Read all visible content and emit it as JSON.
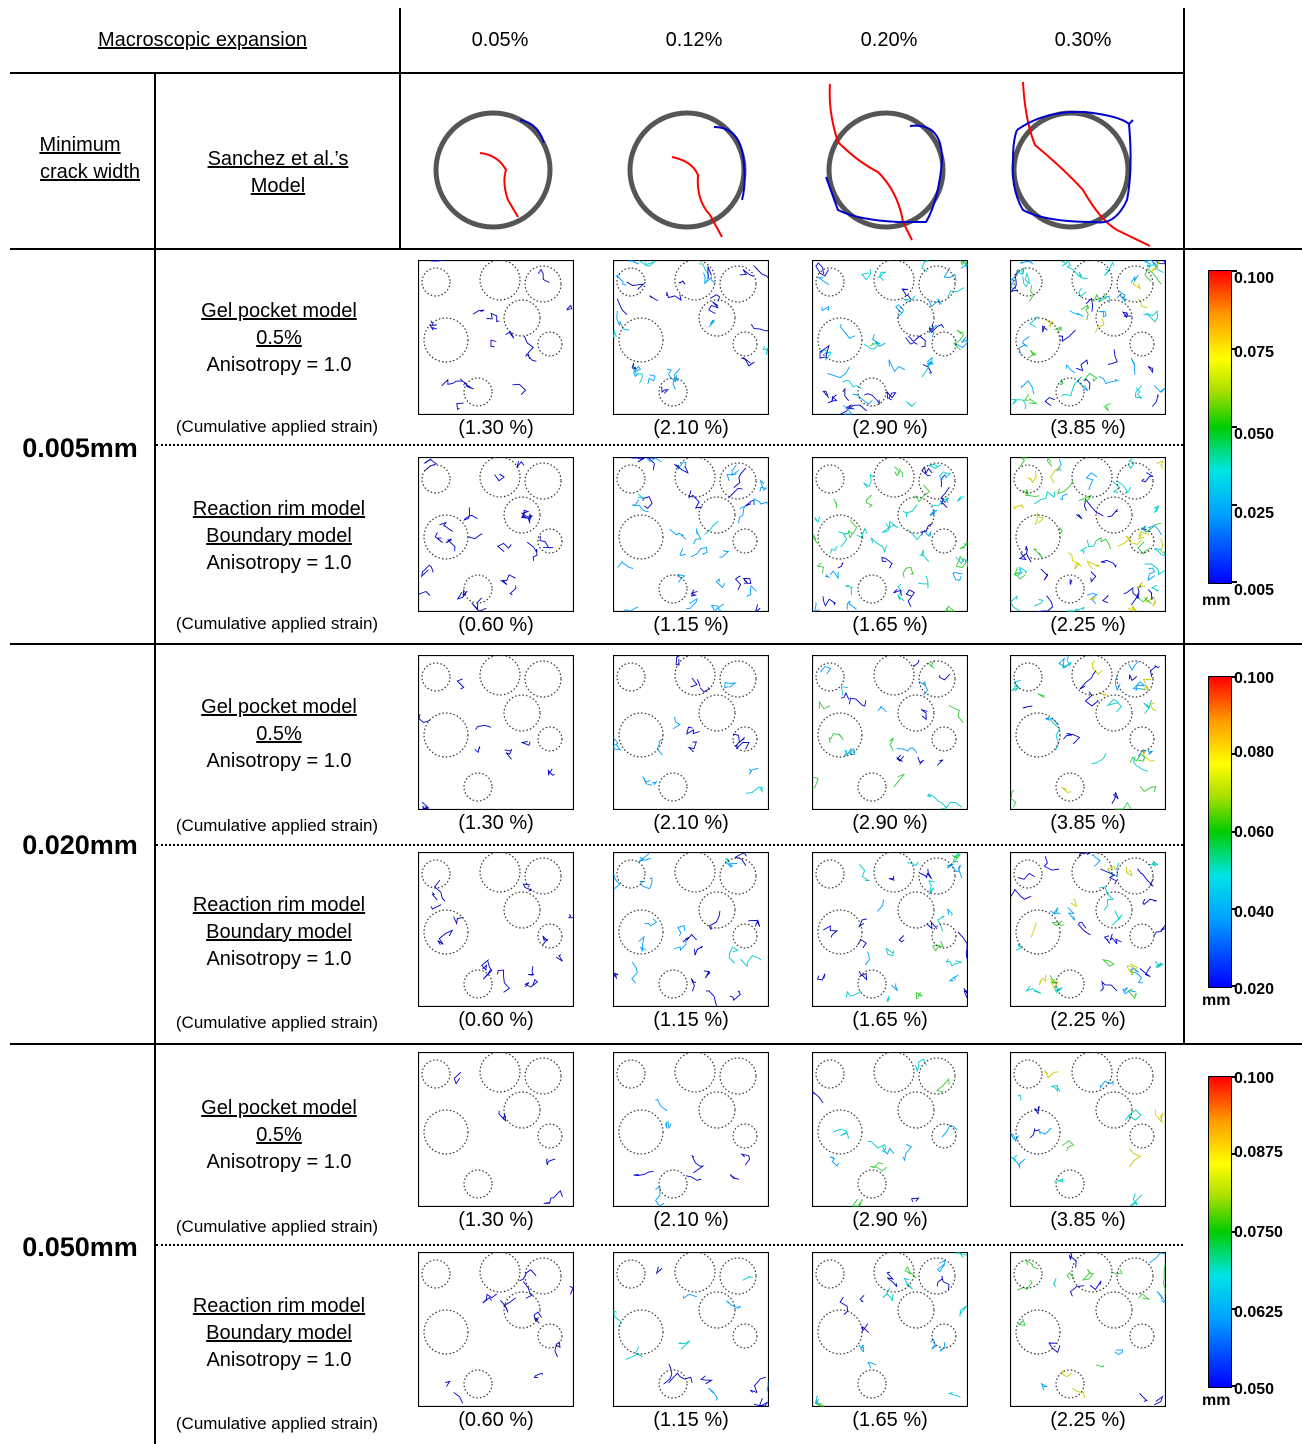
{
  "header": {
    "macro_label": "Macroscopic expansion",
    "expansions": [
      "0.05%",
      "0.12%",
      "0.20%",
      "0.30%"
    ],
    "min_crack_label_line1": "Minimum",
    "min_crack_label_line2": "crack width",
    "sanchez_line1": "Sanchez et al.’s",
    "sanchez_line2": "Model"
  },
  "rows": [
    {
      "width_label": "0.005mm",
      "sub": [
        {
          "model_line1": "Gel pocket model",
          "model_line2": "0.5%",
          "aniso": "Anisotropy = 1.0",
          "strain_caption": "(Cumulative applied strain)",
          "strains": [
            "(1.30 %)",
            "(2.10 %)",
            "(2.90 %)",
            "(3.85 %)"
          ]
        },
        {
          "model_line1": "Reaction rim model",
          "model_line2": "Boundary model",
          "aniso": "Anisotropy = 1.0",
          "strain_caption": "(Cumulative applied strain)",
          "strains": [
            "(0.60 %)",
            "(1.15 %)",
            "(1.65 %)",
            "(2.25 %)"
          ]
        }
      ],
      "colorbar": {
        "ticks": [
          "0.100",
          "0.075",
          "0.050",
          "0.025",
          "0.005"
        ],
        "unit": "mm"
      }
    },
    {
      "width_label": "0.020mm",
      "sub": [
        {
          "model_line1": "Gel pocket model",
          "model_line2": "0.5%",
          "aniso": "Anisotropy = 1.0",
          "strain_caption": "(Cumulative applied strain)",
          "strains": [
            "(1.30 %)",
            "(2.10 %)",
            "(2.90 %)",
            "(3.85 %)"
          ]
        },
        {
          "model_line1": "Reaction rim model",
          "model_line2": "Boundary model",
          "aniso": "Anisotropy = 1.0",
          "strain_caption": "(Cumulative applied strain)",
          "strains": [
            "(0.60 %)",
            "(1.15 %)",
            "(1.65 %)",
            "(2.25 %)"
          ]
        }
      ],
      "colorbar": {
        "ticks": [
          "0.100",
          "0.080",
          "0.060",
          "0.040",
          "0.020"
        ],
        "unit": "mm"
      }
    },
    {
      "width_label": "0.050mm",
      "sub": [
        {
          "model_line1": "Gel pocket model",
          "model_line2": "0.5%",
          "aniso": "Anisotropy = 1.0",
          "strain_caption": "(Cumulative applied strain)",
          "strains": [
            "(1.30 %)",
            "(2.10 %)",
            "(2.90 %)",
            "(3.85 %)"
          ]
        },
        {
          "model_line1": "Reaction rim model",
          "model_line2": "Boundary model",
          "aniso": "Anisotropy = 1.0",
          "strain_caption": "(Cumulative applied strain)",
          "strains": [
            "(0.60 %)",
            "(1.15 %)",
            "(1.65 %)",
            "(2.25 %)"
          ]
        }
      ],
      "colorbar": {
        "ticks": [
          "0.100",
          "0.0875",
          "0.0750",
          "0.0625",
          "0.050"
        ],
        "unit": "mm"
      }
    }
  ],
  "colors": {
    "red_crack": "#ff0000",
    "blue_crack": "#0000cc",
    "circle": "#555555"
  }
}
